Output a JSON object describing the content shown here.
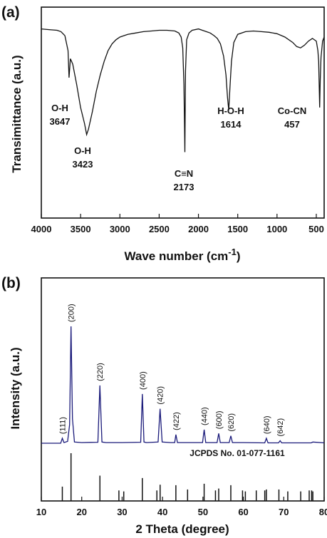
{
  "chart_data": [
    {
      "panel_label": "(a)",
      "type": "line",
      "xlabel": "Wave number (cm",
      "xlabel_sup": "-1",
      "xlabel_close": ")",
      "ylabel": "Transimittance (a.u.)",
      "xlim": [
        4000,
        400
      ],
      "x_reversed": true,
      "xticks": [
        "4000",
        "3500",
        "3000",
        "2500",
        "2000",
        "1500",
        "1000",
        "500"
      ],
      "xtick_values": [
        4000,
        3500,
        3000,
        2500,
        2000,
        1500,
        1000,
        500
      ],
      "ylim": [
        0,
        100
      ],
      "yticks_shown": false,
      "series": [
        {
          "color": "#111111",
          "x": [
            4000,
            3900,
            3800,
            3750,
            3700,
            3660,
            3647,
            3630,
            3600,
            3550,
            3500,
            3450,
            3423,
            3400,
            3350,
            3300,
            3250,
            3200,
            3150,
            3100,
            3050,
            3000,
            2900,
            2800,
            2700,
            2600,
            2500,
            2400,
            2300,
            2250,
            2220,
            2200,
            2185,
            2173,
            2165,
            2150,
            2120,
            2080,
            2000,
            1950,
            1900,
            1850,
            1800,
            1760,
            1720,
            1680,
            1650,
            1630,
            1614,
            1600,
            1580,
            1550,
            1500,
            1400,
            1300,
            1200,
            1100,
            1000,
            900,
            800,
            750,
            700,
            650,
            600,
            550,
            500,
            480,
            470,
            457,
            450,
            440,
            420,
            400
          ],
          "y": [
            96,
            95.5,
            95,
            94,
            91,
            80,
            60,
            74,
            70,
            55,
            38,
            26,
            18,
            22,
            35,
            50,
            62,
            72,
            80,
            85,
            88,
            90,
            92,
            93,
            94,
            94.5,
            95,
            95,
            94.5,
            93,
            90,
            82,
            55,
            5,
            65,
            88,
            93,
            95,
            96,
            95,
            94,
            93,
            91,
            89,
            85,
            76,
            62,
            45,
            36,
            52,
            72,
            86,
            92,
            94,
            94.5,
            94,
            93.5,
            92.5,
            90,
            86,
            83,
            82,
            84,
            87,
            89,
            87,
            80,
            72,
            38,
            58,
            75,
            87,
            90
          ]
        }
      ],
      "annotations": [
        {
          "line1": "O-H",
          "line2": "3647",
          "x": 3647
        },
        {
          "line1": "O-H",
          "line2": "3423",
          "x": 3423
        },
        {
          "line1": "C≡N",
          "line2": "2173",
          "x": 2173
        },
        {
          "line1": "H-O-H",
          "line2": "1614",
          "x": 1614
        },
        {
          "line1": "Co-CN",
          "line2": "457",
          "x": 457
        }
      ]
    },
    {
      "panel_label": "(b)",
      "type": "line",
      "xlabel": "2 Theta (degree)",
      "ylabel": "Intensity (a.u.)",
      "xlim": [
        10,
        80
      ],
      "xticks": [
        "10",
        "20",
        "30",
        "40",
        "50",
        "60",
        "70",
        "80"
      ],
      "xtick_values": [
        10,
        20,
        30,
        40,
        50,
        60,
        70,
        80
      ],
      "series": [
        {
          "color": "#1a1a7a",
          "x": [
            10,
            14.8,
            15.2,
            15.6,
            16.5,
            17.0,
            17.35,
            17.7,
            18.2,
            20,
            24.0,
            24.5,
            25.0,
            26,
            30,
            34.6,
            35.0,
            35.4,
            36,
            38.9,
            39.4,
            39.9,
            42,
            43.0,
            43.3,
            43.7,
            46,
            49.9,
            50.3,
            50.7,
            52,
            53.5,
            53.9,
            54.3,
            56.5,
            56.9,
            57.3,
            60,
            65.3,
            65.7,
            66.1,
            68.7,
            69.1,
            69.5,
            72,
            76.8,
            77.2,
            80
          ],
          "y": [
            5,
            5,
            9,
            5.5,
            6.5,
            20,
            100,
            25,
            6,
            5.5,
            5.8,
            52,
            6,
            5.5,
            5.5,
            5.8,
            45,
            6,
            5.5,
            6,
            33,
            6,
            5.5,
            5.5,
            12,
            5.5,
            5.5,
            5.5,
            16,
            5.5,
            5.5,
            5.5,
            13,
            5.5,
            5.5,
            11,
            5.5,
            5.5,
            5.3,
            9,
            5.3,
            5.3,
            7,
            5.3,
            5.3,
            5.3,
            6,
            5.3
          ]
        }
      ],
      "peak_labels": [
        {
          "label": "(111)",
          "x": 15.2
        },
        {
          "label": "(200)",
          "x": 17.35
        },
        {
          "label": "(220)",
          "x": 24.5
        },
        {
          "label": "(400)",
          "x": 35.0
        },
        {
          "label": "(420)",
          "x": 39.4
        },
        {
          "label": "(422)",
          "x": 43.3
        },
        {
          "label": "(440)",
          "x": 50.3
        },
        {
          "label": "(600)",
          "x": 53.9
        },
        {
          "label": "(620)",
          "x": 56.9
        },
        {
          "label": "(640)",
          "x": 65.7
        },
        {
          "label": "(642)",
          "x": 69.1
        }
      ],
      "reference": {
        "label": "JCPDS No. 01-077-1161",
        "color": "#111111",
        "positions": [
          15.2,
          17.35,
          24.5,
          29.2,
          30.4,
          35.0,
          38.6,
          39.4,
          43.3,
          46.2,
          50.3,
          53.1,
          53.9,
          56.9,
          59.8,
          60.5,
          63.2,
          65.3,
          65.7,
          68.8,
          71.0,
          74.2,
          76.3,
          76.9,
          77.2
        ],
        "heights": [
          30,
          100,
          53,
          22,
          20,
          48,
          22,
          34,
          33,
          24,
          36,
          22,
          26,
          33,
          22,
          20,
          22,
          22,
          24,
          24,
          20,
          20,
          22,
          22,
          20
        ]
      }
    }
  ]
}
